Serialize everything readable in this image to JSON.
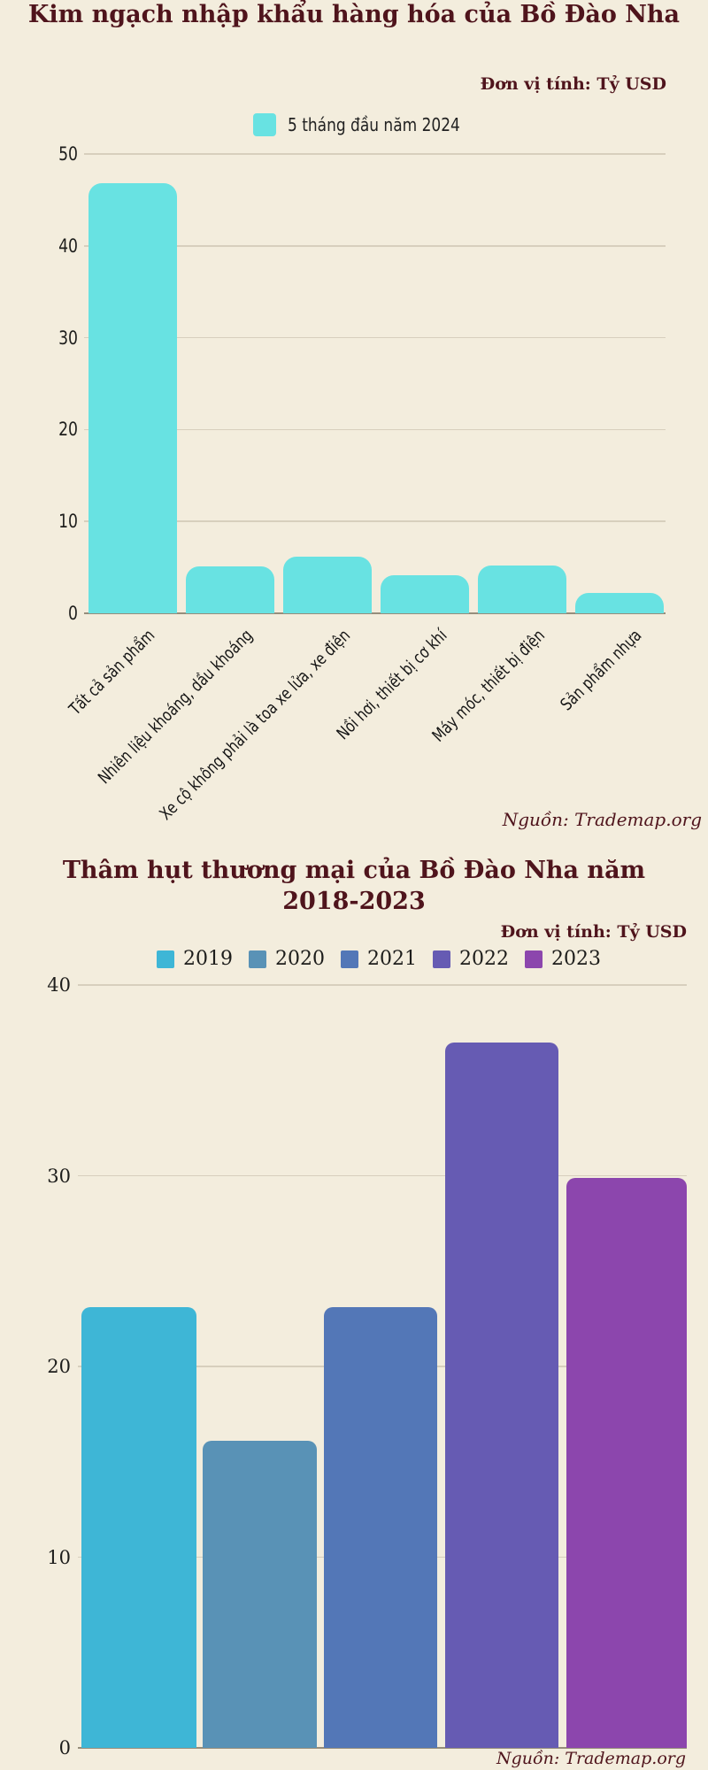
{
  "background": "#f3eddd",
  "accent_color": "#4f141c",
  "chart_data": [
    {
      "type": "bar",
      "title": "Kim ngạch nhập khẩu hàng hóa của Bồ Đào Nha",
      "unit_label": "Đơn vị tính: Tỷ USD",
      "legend": [
        {
          "label": "5 tháng đầu năm 2024",
          "color": "#68e2e2"
        }
      ],
      "legend_position": "top",
      "categories": [
        "Tất cả sản phẩm",
        "Nhiên liệu khoáng, dầu khoáng",
        "Xe cộ không phải là toa xe lửa, xe điện",
        "Nồi hơi, thiết bị cơ khí",
        "Máy móc, thiết bị điện",
        "Sản phẩm nhựa"
      ],
      "values": [
        46.8,
        5.1,
        6.2,
        4.1,
        5.2,
        2.2
      ],
      "bar_color": "#68e2e2",
      "ylim": [
        0,
        50
      ],
      "yticks": [
        50,
        40,
        30,
        20,
        10,
        0
      ],
      "grid": true,
      "source": "Nguồn: Trademap.org"
    },
    {
      "type": "bar",
      "title": "Thâm hụt thương mại của Bồ Đào Nha năm 2018-2023",
      "title_lines": [
        "Thâm hụt thương mại của Bồ Đào Nha năm",
        "2018-2023"
      ],
      "unit_label": "Đơn vị tính: Tỷ USD",
      "legend_position": "top",
      "categories": [
        "2019",
        "2020",
        "2021",
        "2022",
        "2023"
      ],
      "values": [
        23.1,
        16.1,
        23.1,
        37,
        29.9
      ],
      "bar_colors": [
        "#3eb6d6",
        "#5992b6",
        "#5377b7",
        "#665bb3",
        "#8c46ad"
      ],
      "ylim": [
        0,
        40
      ],
      "yticks": [
        40,
        30,
        20,
        10,
        0
      ],
      "grid": true,
      "source": "Nguồn: Trademap.org"
    }
  ]
}
